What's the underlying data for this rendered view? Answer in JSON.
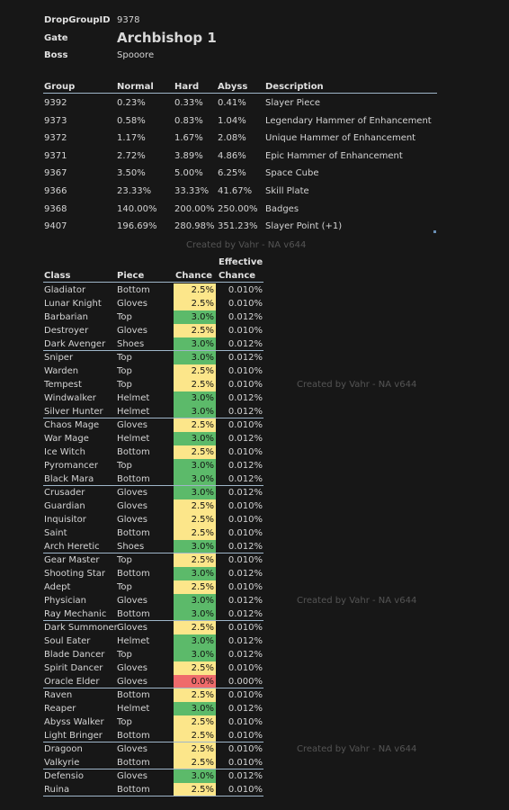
{
  "header": {
    "drop_group_label": "DropGroupID",
    "drop_group_value": "9378",
    "gate_label": "Gate",
    "gate_value": "Archbishop 1",
    "boss_label": "Boss",
    "boss_value": "Spooore"
  },
  "groups": {
    "columns": [
      "Group",
      "Normal",
      "Hard",
      "Abyss",
      "Description"
    ],
    "rows": [
      [
        "9392",
        "0.23%",
        "0.33%",
        "0.41%",
        "Slayer Piece"
      ],
      [
        "9373",
        "0.58%",
        "0.83%",
        "1.04%",
        "Legendary Hammer of Enhancement"
      ],
      [
        "9372",
        "1.17%",
        "1.67%",
        "2.08%",
        "Unique Hammer of Enhancement"
      ],
      [
        "9371",
        "2.72%",
        "3.89%",
        "4.86%",
        "Epic Hammer of Enhancement"
      ],
      [
        "9367",
        "3.50%",
        "5.00%",
        "6.25%",
        "Space Cube"
      ],
      [
        "9366",
        "23.33%",
        "33.33%",
        "41.67%",
        "Skill Plate"
      ],
      [
        "9368",
        "140.00%",
        "200.00%",
        "250.00%",
        "Badges"
      ],
      [
        "9407",
        "196.69%",
        "280.98%",
        "351.23%",
        "Slayer Point (+1)"
      ]
    ]
  },
  "watermark": "Created by Vahr - NA v644",
  "classes": {
    "col_class": "Class",
    "col_piece": "Piece",
    "col_chance": "Chance",
    "col_effective_1": "Effective",
    "col_effective_2": "Chance",
    "colors": {
      "green": "#5cba6a",
      "yellow": "#fce68a",
      "red": "#ef6b6b"
    },
    "rows": [
      {
        "cls": "Gladiator",
        "piece": "Bottom",
        "chance": "2.5%",
        "eff": "0.010%",
        "color": "yellow",
        "sep": false
      },
      {
        "cls": "Lunar Knight",
        "piece": "Gloves",
        "chance": "2.5%",
        "eff": "0.010%",
        "color": "yellow",
        "sep": false
      },
      {
        "cls": "Barbarian",
        "piece": "Top",
        "chance": "3.0%",
        "eff": "0.012%",
        "color": "green",
        "sep": false
      },
      {
        "cls": "Destroyer",
        "piece": "Gloves",
        "chance": "2.5%",
        "eff": "0.010%",
        "color": "yellow",
        "sep": false
      },
      {
        "cls": "Dark Avenger",
        "piece": "Shoes",
        "chance": "3.0%",
        "eff": "0.012%",
        "color": "green",
        "sep": true
      },
      {
        "cls": "Sniper",
        "piece": "Top",
        "chance": "3.0%",
        "eff": "0.012%",
        "color": "green",
        "sep": false
      },
      {
        "cls": "Warden",
        "piece": "Top",
        "chance": "2.5%",
        "eff": "0.010%",
        "color": "yellow",
        "sep": false
      },
      {
        "cls": "Tempest",
        "piece": "Top",
        "chance": "2.5%",
        "eff": "0.010%",
        "color": "yellow",
        "sep": false
      },
      {
        "cls": "Windwalker",
        "piece": "Helmet",
        "chance": "3.0%",
        "eff": "0.012%",
        "color": "green",
        "sep": false
      },
      {
        "cls": "Silver Hunter",
        "piece": "Helmet",
        "chance": "3.0%",
        "eff": "0.012%",
        "color": "green",
        "sep": true
      },
      {
        "cls": "Chaos Mage",
        "piece": "Gloves",
        "chance": "2.5%",
        "eff": "0.010%",
        "color": "yellow",
        "sep": false
      },
      {
        "cls": "War Mage",
        "piece": "Helmet",
        "chance": "3.0%",
        "eff": "0.012%",
        "color": "green",
        "sep": false
      },
      {
        "cls": "Ice Witch",
        "piece": "Bottom",
        "chance": "2.5%",
        "eff": "0.010%",
        "color": "yellow",
        "sep": false
      },
      {
        "cls": "Pyromancer",
        "piece": "Top",
        "chance": "3.0%",
        "eff": "0.012%",
        "color": "green",
        "sep": false
      },
      {
        "cls": "Black Mara",
        "piece": "Bottom",
        "chance": "3.0%",
        "eff": "0.012%",
        "color": "green",
        "sep": true
      },
      {
        "cls": "Crusader",
        "piece": "Gloves",
        "chance": "3.0%",
        "eff": "0.012%",
        "color": "green",
        "sep": false
      },
      {
        "cls": "Guardian",
        "piece": "Gloves",
        "chance": "2.5%",
        "eff": "0.010%",
        "color": "yellow",
        "sep": false
      },
      {
        "cls": "Inquisitor",
        "piece": "Gloves",
        "chance": "2.5%",
        "eff": "0.010%",
        "color": "yellow",
        "sep": false
      },
      {
        "cls": "Saint",
        "piece": "Bottom",
        "chance": "2.5%",
        "eff": "0.010%",
        "color": "yellow",
        "sep": false
      },
      {
        "cls": "Arch Heretic",
        "piece": "Shoes",
        "chance": "3.0%",
        "eff": "0.012%",
        "color": "green",
        "sep": true
      },
      {
        "cls": "Gear Master",
        "piece": "Top",
        "chance": "2.5%",
        "eff": "0.010%",
        "color": "yellow",
        "sep": false
      },
      {
        "cls": "Shooting Star",
        "piece": "Bottom",
        "chance": "3.0%",
        "eff": "0.012%",
        "color": "green",
        "sep": false
      },
      {
        "cls": "Adept",
        "piece": "Top",
        "chance": "2.5%",
        "eff": "0.010%",
        "color": "yellow",
        "sep": false
      },
      {
        "cls": "Physician",
        "piece": "Gloves",
        "chance": "3.0%",
        "eff": "0.012%",
        "color": "green",
        "sep": false
      },
      {
        "cls": "Ray Mechanic",
        "piece": "Bottom",
        "chance": "3.0%",
        "eff": "0.012%",
        "color": "green",
        "sep": true
      },
      {
        "cls": "Dark Summoner",
        "piece": "Gloves",
        "chance": "2.5%",
        "eff": "0.010%",
        "color": "yellow",
        "sep": false
      },
      {
        "cls": "Soul Eater",
        "piece": "Helmet",
        "chance": "3.0%",
        "eff": "0.012%",
        "color": "green",
        "sep": false
      },
      {
        "cls": "Blade Dancer",
        "piece": "Top",
        "chance": "3.0%",
        "eff": "0.012%",
        "color": "green",
        "sep": false
      },
      {
        "cls": "Spirit Dancer",
        "piece": "Gloves",
        "chance": "2.5%",
        "eff": "0.010%",
        "color": "yellow",
        "sep": false
      },
      {
        "cls": "Oracle Elder",
        "piece": "Gloves",
        "chance": "0.0%",
        "eff": "0.000%",
        "color": "red",
        "sep": true
      },
      {
        "cls": "Raven",
        "piece": "Bottom",
        "chance": "2.5%",
        "eff": "0.010%",
        "color": "yellow",
        "sep": false
      },
      {
        "cls": "Reaper",
        "piece": "Helmet",
        "chance": "3.0%",
        "eff": "0.012%",
        "color": "green",
        "sep": false
      },
      {
        "cls": "Abyss Walker",
        "piece": "Top",
        "chance": "2.5%",
        "eff": "0.010%",
        "color": "yellow",
        "sep": false
      },
      {
        "cls": "Light Bringer",
        "piece": "Bottom",
        "chance": "2.5%",
        "eff": "0.010%",
        "color": "yellow",
        "sep": true
      },
      {
        "cls": "Dragoon",
        "piece": "Gloves",
        "chance": "2.5%",
        "eff": "0.010%",
        "color": "yellow",
        "sep": false
      },
      {
        "cls": "Valkyrie",
        "piece": "Bottom",
        "chance": "2.5%",
        "eff": "0.010%",
        "color": "yellow",
        "sep": true
      },
      {
        "cls": "Defensio",
        "piece": "Gloves",
        "chance": "3.0%",
        "eff": "0.012%",
        "color": "green",
        "sep": false
      },
      {
        "cls": "Ruina",
        "piece": "Bottom",
        "chance": "2.5%",
        "eff": "0.010%",
        "color": "yellow",
        "sep": true
      }
    ]
  }
}
